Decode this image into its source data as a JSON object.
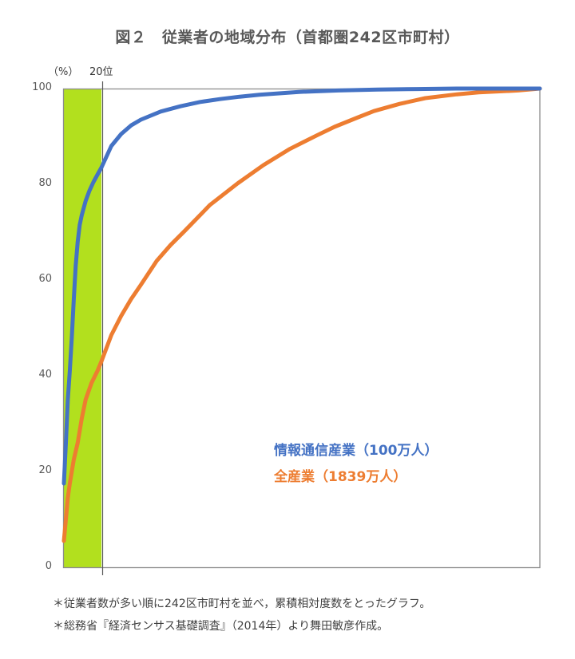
{
  "figure": {
    "title": "図２　従業者の地域分布（首都圏242区市町村）",
    "y_unit_label": "（%）",
    "highlight_label": "20位",
    "legend": [
      {
        "label": "情報通信産業（100万人）",
        "color": "#4472C4"
      },
      {
        "label": "全産業（1839万人）",
        "color": "#ED7D31"
      }
    ],
    "footnotes": [
      "＊従業者数が多い順に242区市町村を並べ，累積相対度数をとったグラフ。",
      "＊総務省『経済センサス基礎調査』（2014年）より舞田敏彦作成。"
    ]
  },
  "chart_data": {
    "type": "line",
    "title": "図２　従業者の地域分布（首都圏242区市町村）",
    "xlabel": "",
    "ylabel": "（%）",
    "xlim": [
      1,
      242
    ],
    "ylim": [
      0,
      100
    ],
    "yticks": [
      0,
      20,
      40,
      60,
      80,
      100
    ],
    "grid": false,
    "legend_position": "inside, lower right",
    "highlight_band": {
      "from": 1,
      "to": 20,
      "label": "20位",
      "color": "#B2E01E"
    },
    "series": [
      {
        "name": "全産業（1839万人）",
        "color": "#ED7D31",
        "x": [
          1,
          2,
          3,
          4,
          5,
          6,
          8,
          10,
          12,
          15,
          18,
          20,
          25,
          30,
          35,
          40,
          48,
          55,
          62,
          75,
          89,
          102,
          115,
          129,
          138,
          150,
          158,
          171,
          184,
          200,
          211,
          231,
          242
        ],
        "values": [
          5.5,
          10,
          14.5,
          17.5,
          20,
          22.5,
          26,
          31,
          35,
          38.5,
          41,
          43,
          48.5,
          52.5,
          56,
          59,
          64,
          67.3,
          70.2,
          75.7,
          80.2,
          84,
          87.3,
          90.2,
          92,
          94,
          95.3,
          96.8,
          98,
          98.8,
          99.2,
          99.6,
          100
        ]
      },
      {
        "name": "情報通信産業（100万人）",
        "color": "#4472C4",
        "x": [
          1,
          2,
          3,
          4,
          5,
          6,
          7,
          8,
          9,
          10,
          12,
          14,
          16,
          18,
          20,
          25,
          30,
          35,
          40,
          50,
          60,
          70,
          80,
          90,
          100,
          110,
          120,
          140,
          160,
          180,
          200,
          220,
          242
        ],
        "values": [
          17.5,
          26,
          35,
          41,
          48,
          56,
          63,
          68,
          71.5,
          73.5,
          76.5,
          78.7,
          80.5,
          82,
          83.5,
          88,
          90.5,
          92.3,
          93.5,
          95.2,
          96.3,
          97.2,
          97.8,
          98.3,
          98.7,
          99,
          99.3,
          99.6,
          99.8,
          99.9,
          100,
          100,
          100
        ]
      }
    ]
  }
}
